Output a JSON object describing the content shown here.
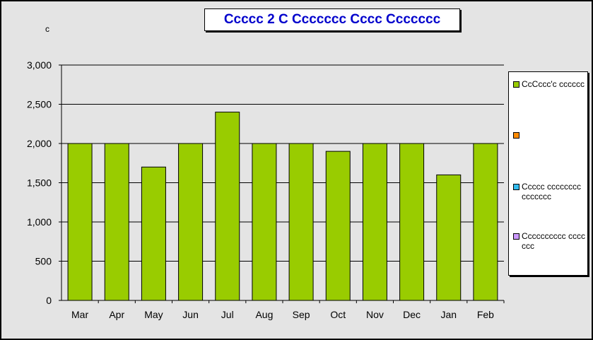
{
  "chart_data": {
    "type": "bar",
    "title": "Ccccc 2 C Ccccccc Cccc Ccccccc",
    "ylabel": "c",
    "xlabel": "",
    "categories": [
      "Mar",
      "Apr",
      "May",
      "Jun",
      "Jul",
      "Aug",
      "Sep",
      "Oct",
      "Nov",
      "Dec",
      "Jan",
      "Feb"
    ],
    "series": [
      {
        "name": "CcCccc'c cccccc",
        "color": "#99cc00",
        "values": [
          2000,
          2000,
          1700,
          2000,
          2400,
          2000,
          2000,
          1900,
          2000,
          2000,
          1600,
          2000
        ]
      }
    ],
    "ylim": [
      0,
      3000
    ],
    "yticks": [
      0,
      500,
      1000,
      1500,
      2000,
      2500,
      3000
    ],
    "ytick_labels": [
      "0",
      "500",
      "1,000",
      "1,500",
      "2,000",
      "2,500",
      "3,000"
    ],
    "grid": "horizontal",
    "legend_position": "right",
    "legend": [
      {
        "label": "CcCccc'c cccccc",
        "color": "#99cc00"
      },
      {
        "label": "",
        "color": "#ff8c00"
      },
      {
        "label": "Ccccc cccccccc ccccccc",
        "color": "#33bbee"
      },
      {
        "label": "Cccccccccc ccccccc",
        "color": "#cc99ff"
      }
    ]
  }
}
